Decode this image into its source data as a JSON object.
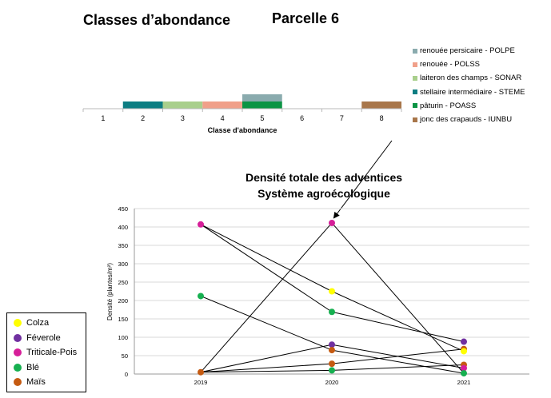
{
  "header": {
    "title": "Classes d’abondance",
    "plot_label": "Parcelle 6"
  },
  "colors": {
    "POLPE": "#8aabae",
    "POLSS": "#f0a08a",
    "SONAR": "#a9cf8c",
    "STEME": "#0d7d82",
    "POASS": "#0b9444",
    "IUNBU": "#a8764a",
    "Colza": "#ffff00",
    "Féverole": "#7030a0",
    "Triticale-Pois": "#d61f99",
    "Blé": "#16b050",
    "Maïs": "#c55a11"
  },
  "chart_data": [
    {
      "type": "bar",
      "xlabel": "Classe d'abondance",
      "categories": [
        "1",
        "2",
        "3",
        "4",
        "5",
        "6",
        "7",
        "8"
      ],
      "series": [
        {
          "name": "renouée persicaire - POLPE",
          "code": "POLPE",
          "values": [
            0,
            0,
            0,
            0,
            1,
            0,
            0,
            0
          ]
        },
        {
          "name": "renouée - POLSS",
          "code": "POLSS",
          "values": [
            0,
            0,
            0,
            1,
            0,
            0,
            0,
            0
          ]
        },
        {
          "name": "laiteron des champs - SONAR",
          "code": "SONAR",
          "values": [
            0,
            0,
            1,
            0,
            0,
            0,
            0,
            0
          ]
        },
        {
          "name": "stellaire intermédiaire - STEME",
          "code": "STEME",
          "values": [
            0,
            1,
            0,
            0,
            0,
            0,
            0,
            0
          ]
        },
        {
          "name": "pâturin - POASS",
          "code": "POASS",
          "values": [
            0,
            0,
            0,
            0,
            1,
            0,
            0,
            0
          ]
        },
        {
          "name": "jonc des crapauds - IUNBU",
          "code": "IUNBU",
          "values": [
            0,
            0,
            0,
            0,
            0,
            0,
            0,
            1
          ]
        }
      ]
    },
    {
      "type": "line",
      "title": "Densité totale des adventices\nSystème agroécologique",
      "title_lines": [
        "Densité totale des adventices",
        "Système agroécologique"
      ],
      "xlabel": "",
      "ylabel": "Densité (plantes/m²)",
      "x": [
        "2019",
        "2020",
        "2021"
      ],
      "ylim": [
        0,
        450
      ],
      "yticks": [
        0,
        50,
        100,
        150,
        200,
        250,
        300,
        350,
        400,
        450
      ],
      "grid": true,
      "legend": "bottom-left",
      "points": [
        {
          "crop": "Triticale-Pois",
          "x": "2019",
          "y": 407
        },
        {
          "crop": "Blé",
          "x": "2019",
          "y": 212
        },
        {
          "crop": "Maïs",
          "x": "2019",
          "y": 5
        },
        {
          "crop": "Triticale-Pois",
          "x": "2020",
          "y": 411
        },
        {
          "crop": "Colza",
          "x": "2020",
          "y": 225
        },
        {
          "crop": "Blé",
          "x": "2020",
          "y": 169
        },
        {
          "crop": "Féverole",
          "x": "2020",
          "y": 80
        },
        {
          "crop": "Maïs",
          "x": "2020",
          "y": 65
        },
        {
          "crop": "Maïs",
          "x": "2020",
          "y": 28
        },
        {
          "crop": "Blé",
          "x": "2020",
          "y": 10
        },
        {
          "crop": "Féverole",
          "x": "2021",
          "y": 88
        },
        {
          "crop": "Maïs",
          "x": "2021",
          "y": 68
        },
        {
          "crop": "Colza",
          "x": "2021",
          "y": 62
        },
        {
          "crop": "Maïs",
          "x": "2021",
          "y": 25
        },
        {
          "crop": "Triticale-Pois",
          "x": "2021",
          "y": 16
        },
        {
          "crop": "Blé",
          "x": "2021",
          "y": 2
        }
      ],
      "links": [
        {
          "from": [
            "2019",
            407
          ],
          "to": [
            "2020",
            225
          ]
        },
        {
          "from": [
            "2019",
            407
          ],
          "to": [
            "2020",
            169
          ]
        },
        {
          "from": [
            "2019",
            212
          ],
          "to": [
            "2020",
            65
          ]
        },
        {
          "from": [
            "2019",
            5
          ],
          "to": [
            "2020",
            411
          ]
        },
        {
          "from": [
            "2019",
            5
          ],
          "to": [
            "2020",
            80
          ]
        },
        {
          "from": [
            "2019",
            5
          ],
          "to": [
            "2020",
            28
          ]
        },
        {
          "from": [
            "2019",
            5
          ],
          "to": [
            "2020",
            10
          ]
        },
        {
          "from": [
            "2020",
            411
          ],
          "to": [
            "2021",
            2
          ]
        },
        {
          "from": [
            "2020",
            225
          ],
          "to": [
            "2021",
            62
          ]
        },
        {
          "from": [
            "2020",
            169
          ],
          "to": [
            "2021",
            88
          ]
        },
        {
          "from": [
            "2020",
            80
          ],
          "to": [
            "2021",
            16
          ]
        },
        {
          "from": [
            "2020",
            65
          ],
          "to": [
            "2021",
            2
          ]
        },
        {
          "from": [
            "2020",
            28
          ],
          "to": [
            "2021",
            68
          ]
        },
        {
          "from": [
            "2020",
            10
          ],
          "to": [
            "2021",
            25
          ]
        }
      ],
      "legend_entries": [
        "Colza",
        "Féverole",
        "Triticale-Pois",
        "Blé",
        "Maïs"
      ]
    }
  ]
}
